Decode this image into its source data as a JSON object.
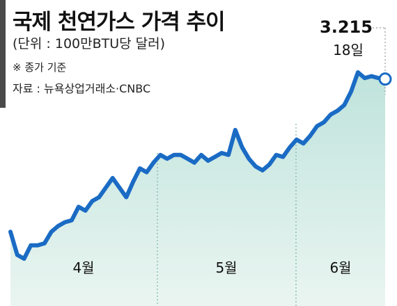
{
  "title": "국제 천연가스 가격 추이",
  "unit": "(단위 : 100만BTU당 달러)",
  "note": "※ 종가 기준",
  "source": "자료 : 뉴욕상업거래소·CNBC",
  "chart_data": {
    "type": "area",
    "series": [
      {
        "values": [
          2.42,
          2.3,
          2.28,
          2.35,
          2.35,
          2.36,
          2.42,
          2.45,
          2.47,
          2.48,
          2.55,
          2.53,
          2.58,
          2.6,
          2.65,
          2.7,
          2.65,
          2.6,
          2.68,
          2.75,
          2.73,
          2.78,
          2.82,
          2.8,
          2.82,
          2.82,
          2.8,
          2.78,
          2.82,
          2.79,
          2.81,
          2.83,
          2.82,
          2.95,
          2.86,
          2.8,
          2.76,
          2.74,
          2.77,
          2.82,
          2.81,
          2.86,
          2.9,
          2.88,
          2.92,
          2.97,
          2.99,
          3.03,
          3.05,
          3.08,
          3.15,
          3.25,
          3.22,
          3.23,
          3.22,
          3.215
        ]
      }
    ],
    "x_labels": [
      "4월",
      "5월",
      "6월"
    ],
    "annotation": {
      "value": "3.215",
      "label": "18일"
    },
    "colors": {
      "line": "#1a6bc4",
      "fill_top": "#bfe3dc",
      "fill_bottom": "#eaf5f1"
    }
  }
}
